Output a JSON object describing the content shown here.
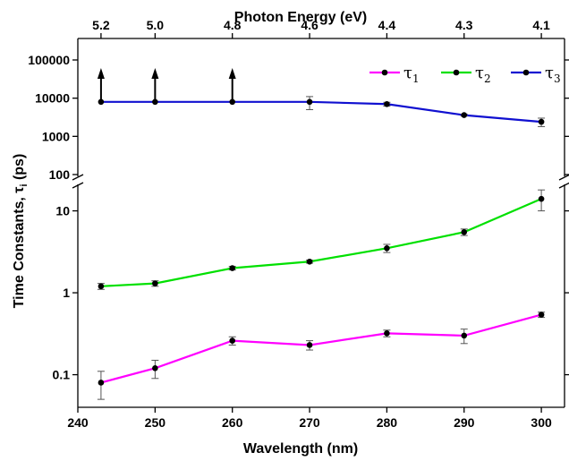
{
  "chart_data": {
    "type": "line",
    "xlabel": "Wavelength (nm)",
    "x2label": "Photon Energy (eV)",
    "ylabel": {
      "main": "Time Constants, ",
      "symbol": "τ",
      "sub": "i",
      "unit": " (ps)"
    },
    "xlim": [
      240,
      303
    ],
    "x": [
      243,
      250,
      260,
      270,
      280,
      290,
      300
    ],
    "x_ticks": [
      240,
      250,
      260,
      270,
      280,
      290,
      300
    ],
    "x_tick_labels": [
      "240",
      "250",
      "260",
      "270",
      "280",
      "290",
      "300"
    ],
    "x2_ticks": [
      {
        "at_wavelength": 243,
        "label": "5.2"
      },
      {
        "at_wavelength": 250,
        "label": "5.0"
      },
      {
        "at_wavelength": 260,
        "label": "4.8"
      },
      {
        "at_wavelength": 270,
        "label": "4.6"
      },
      {
        "at_wavelength": 280,
        "label": "4.4"
      },
      {
        "at_wavelength": 290,
        "label": "4.3"
      },
      {
        "at_wavelength": 300,
        "label": "4.1"
      }
    ],
    "y_scale": "log",
    "y_axis_break": true,
    "y_upper": {
      "ylim": [
        100,
        100000
      ],
      "ticks": [
        100,
        1000,
        10000,
        100000
      ],
      "tick_labels": [
        "100",
        "1000",
        "10000",
        "100000"
      ]
    },
    "y_lower": {
      "ylim": [
        0.04,
        20
      ],
      "ticks": [
        0.1,
        1,
        10
      ],
      "tick_labels": [
        "0.1",
        "1",
        "10"
      ]
    },
    "series": [
      {
        "name_symbol": "τ",
        "name_sub": "1",
        "color": "#ff00ff",
        "panel": "lower",
        "y": [
          0.08,
          0.12,
          0.26,
          0.23,
          0.32,
          0.3,
          0.54
        ],
        "err_low": [
          0.05,
          0.09,
          0.23,
          0.2,
          0.29,
          0.24,
          0.5
        ],
        "err_high": [
          0.11,
          0.15,
          0.29,
          0.26,
          0.35,
          0.36,
          0.58
        ]
      },
      {
        "name_symbol": "τ",
        "name_sub": "2",
        "color": "#00e000",
        "panel": "lower",
        "y": [
          1.2,
          1.3,
          2.0,
          2.4,
          3.5,
          5.5,
          14
        ],
        "err_low": [
          1.1,
          1.2,
          1.9,
          2.3,
          3.1,
          5.0,
          10
        ],
        "err_high": [
          1.3,
          1.4,
          2.1,
          2.5,
          3.9,
          6.0,
          18
        ]
      },
      {
        "name_symbol": "τ",
        "name_sub": "3",
        "color": "#1010d0",
        "panel": "upper",
        "y": [
          8000,
          8000,
          8000,
          8000,
          7000,
          3600,
          2400
        ],
        "err_low": [
          8000,
          8000,
          8000,
          5000,
          6200,
          3400,
          1800
        ],
        "err_high": [
          8000,
          8000,
          8000,
          11000,
          7800,
          3800,
          3000
        ],
        "lower_bound_arrows_at": [
          243,
          250,
          260
        ]
      }
    ],
    "legend_position": "top-right",
    "grid": false
  }
}
